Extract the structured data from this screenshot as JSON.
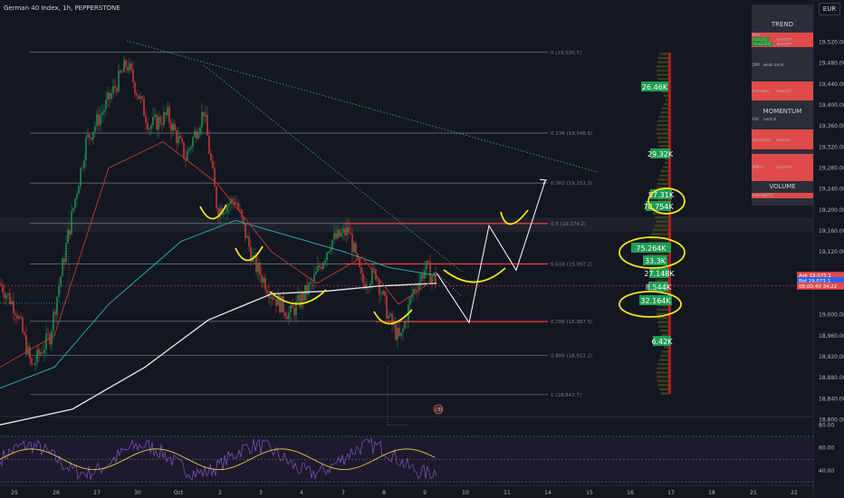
{
  "header": {
    "symbol_line": "German 40 Index, 1h, PEPPERSTONE",
    "currency": "EUR"
  },
  "colors": {
    "bg": "#131722",
    "candle_up": "#1f9d55",
    "candle_down": "#e03b3b",
    "fib": "#787b86",
    "trend_dot": "#4caf50",
    "ma_white": "#e8e8e8",
    "ma_teal": "#26a69a",
    "ma_red": "#b03a2e",
    "highlight": "#f5e61a",
    "rsi": "#7e57c2",
    "rsi_ma": "#e6c84a"
  },
  "fib_levels": [
    {
      "label": "0 (19,500.7)",
      "value": 19500.7
    },
    {
      "label": "0.236 (19,346.6)",
      "value": 19346.6
    },
    {
      "label": "0.382 (19,251.3)",
      "value": 19251.3
    },
    {
      "label": "0.5 (19,174.2)",
      "value": 19174.2
    },
    {
      "label": "0.618 (19,097.2)",
      "value": 19097.2
    },
    {
      "label": "0.786 (18,987.5)",
      "value": 18987.5
    },
    {
      "label": "0.886 (18,922.2)",
      "value": 18922.2
    },
    {
      "label": "1 (18,847.7)",
      "value": 18847.7
    }
  ],
  "chart_data": {
    "type": "candlestick",
    "title": "German 40 Index, 1h, PEPPERSTONE",
    "ylim": [
      18780,
      19540
    ],
    "y_ticks": [
      "19,520.00",
      "19,480.00",
      "19,440.00",
      "19,400.00",
      "19,360.00",
      "19,320.00",
      "19,280.00",
      "19,240.00",
      "19,200.00",
      "19,160.00",
      "19,120.00",
      "19,000.00",
      "18,960.00",
      "18,920.00",
      "18,880.00",
      "18,840.00",
      "18,800.00"
    ],
    "x_ticks": [
      "25",
      "26",
      "27",
      "30",
      "Oct",
      "2",
      "3",
      "4",
      "7",
      "8",
      "9",
      "10",
      "11",
      "14",
      "15",
      "16",
      "17",
      "18",
      "21",
      "22"
    ],
    "price_tags": [
      {
        "label": "Ask",
        "value": "19,075.1",
        "y": 19075
      },
      {
        "label": "Bid",
        "value": "19,073.1",
        "y": 19065
      },
      {
        "label": "08:00:40",
        "value": "34:22",
        "y": 19055
      }
    ],
    "volume_profile_labels": [
      "26.46K",
      "29.32K",
      "57.31K",
      "78.754K",
      "75.264K",
      "33.3K",
      "27.148K",
      "8.544K",
      "32.164K",
      "6.42K"
    ],
    "rsi": {
      "ticks": [
        "80.00",
        "60.00",
        "40.00"
      ],
      "levels": [
        70,
        50,
        30
      ],
      "last": 55
    }
  },
  "panel": {
    "trend_title": "TREND",
    "trend_rows": [
      {
        "k": "MAs",
        "v": ""
      },
      {
        "k": "fast(20)",
        "v": "bearish*"
      },
      {
        "k": "slow(200)",
        "v": "bearish*"
      }
    ],
    "dmi": {
      "k": "DMI",
      "v": "weak trend"
    },
    "ichimoku": {
      "k": "Ichimoku",
      "v": "bearish*"
    },
    "momentum_title": "MOMENTUM",
    "rsi": {
      "k": "RSI",
      "v": "neutral"
    },
    "stochastic": {
      "k": "Stochastic",
      "v": "bearish"
    },
    "macd": {
      "k": "MACD",
      "v": "bearish*"
    },
    "volume_title": "VOLUME",
    "volume": {
      "k": "volume",
      "v": "1274"
    }
  },
  "overlay_label": "(3)"
}
